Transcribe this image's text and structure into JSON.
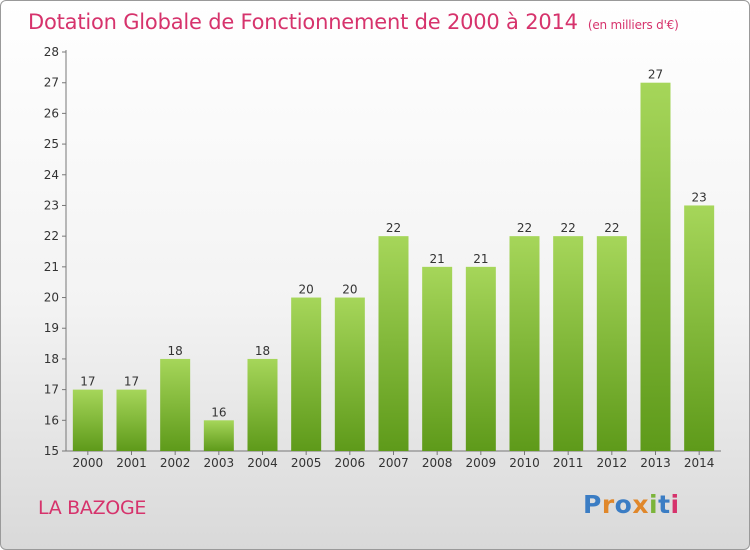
{
  "title": "Dotation Globale de Fonctionnement de 2000 à 2014",
  "subtitle": "(en milliers d'€)",
  "commune": "LA BAZOGE",
  "logo": {
    "letters": [
      "P",
      "r",
      "o",
      "x",
      "i",
      "t",
      "i"
    ],
    "colors": [
      "#3b7dc4",
      "#e0872a",
      "#3b7dc4",
      "#e0872a",
      "#7bb43a",
      "#3b7dc4",
      "#d6336c"
    ]
  },
  "colors": {
    "bar_light": "#a6d65a",
    "bar_dark": "#5e9a1a",
    "accent": "#d6336c"
  },
  "chart_data": {
    "type": "bar",
    "categories": [
      "2000",
      "2001",
      "2002",
      "2003",
      "2004",
      "2005",
      "2006",
      "2007",
      "2008",
      "2009",
      "2010",
      "2011",
      "2012",
      "2013",
      "2014"
    ],
    "values": [
      17,
      17,
      18,
      16,
      18,
      20,
      20,
      22,
      21,
      21,
      22,
      22,
      22,
      27,
      23
    ],
    "ylim": [
      15,
      28
    ],
    "yticks": [
      15,
      16,
      17,
      18,
      19,
      20,
      21,
      22,
      23,
      24,
      25,
      26,
      27,
      28
    ],
    "grid": false,
    "data_labels": true
  }
}
